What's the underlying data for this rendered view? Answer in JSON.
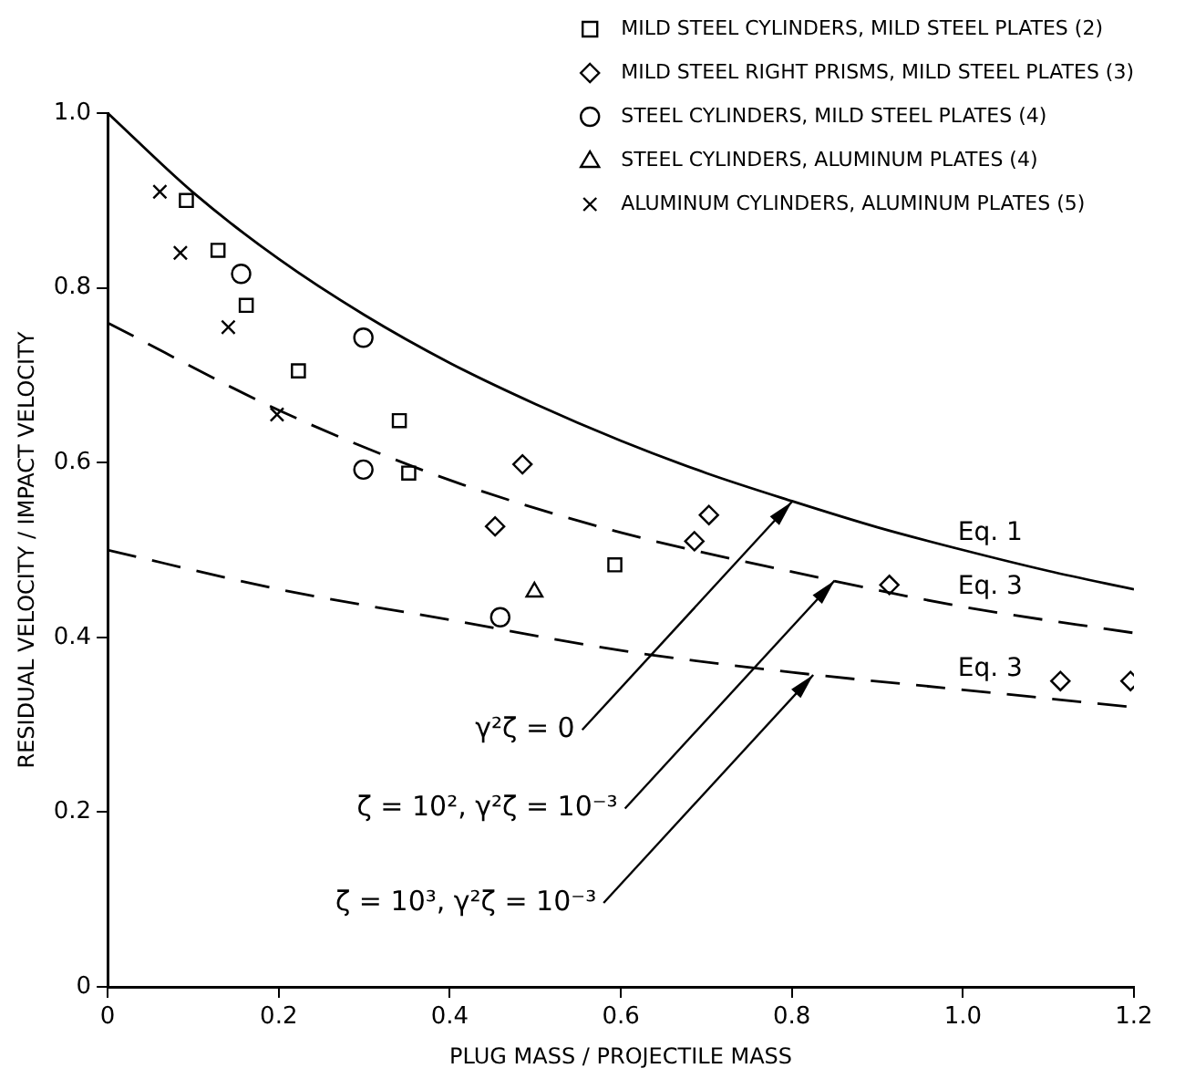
{
  "chart_data": {
    "type": "scatter",
    "xlabel": "PLUG MASS / PROJECTILE MASS",
    "ylabel": "RESIDUAL VELOCITY / IMPACT VELOCITY",
    "xlim": [
      0,
      1.2
    ],
    "xticks": [
      0,
      0.2,
      0.4,
      0.6,
      0.8,
      {
        "value": 1,
        "label": "1.0"
      },
      1.2
    ],
    "ylim": [
      0,
      1
    ],
    "yticks": [
      0,
      0.2,
      0.4,
      0.6,
      0.8,
      {
        "value": 1,
        "label": "1.0"
      }
    ],
    "grid": false,
    "legend": "top right",
    "series": [
      {
        "name": "MILD STEEL CYLINDERS, MILD STEEL PLATES (2)",
        "type": "scatter",
        "marker": "square",
        "color": "#000000",
        "x": [
          0.092,
          0.129,
          0.162,
          0.223,
          0.341,
          0.352,
          0.593
        ],
        "values": [
          0.9,
          0.843,
          0.78,
          0.705,
          0.648,
          0.588,
          0.483
        ]
      },
      {
        "name": "MILD STEEL RIGHT PRISMS, MILD STEEL PLATES (3)",
        "type": "scatter",
        "marker": "diamond",
        "color": "#000000",
        "x": [
          0.453,
          0.485,
          0.686,
          0.703,
          0.914,
          1.114,
          1.196
        ],
        "values": [
          0.527,
          0.598,
          0.51,
          0.54,
          0.46,
          0.35,
          0.35
        ]
      },
      {
        "name": "STEEL CYLINDERS, MILD STEEL PLATES (4)",
        "type": "scatter",
        "marker": "circle",
        "color": "#000000",
        "x": [
          0.156,
          0.299,
          0.299,
          0.459
        ],
        "values": [
          0.816,
          0.743,
          0.592,
          0.423
        ]
      },
      {
        "name": "STEEL CYLINDERS, ALUMINUM PLATES (4)",
        "type": "scatter",
        "marker": "triangle",
        "color": "#000000",
        "x": [
          0.499
        ],
        "values": [
          0.452
        ]
      },
      {
        "name": "ALUMINUM CYLINDERS, ALUMINUM PLATES (5)",
        "type": "scatter",
        "marker": "cross",
        "color": "#000000",
        "x": [
          0.061,
          0.085,
          0.141,
          0.198
        ],
        "values": [
          0.91,
          0.84,
          0.755,
          0.655
        ]
      },
      {
        "name": "Eq. 1",
        "type": "line",
        "line_style": "solid",
        "marker": "none",
        "color": "#000000",
        "x": [
          0,
          0.1,
          0.2,
          0.3,
          0.4,
          0.5,
          0.6,
          0.7,
          0.8,
          0.9,
          1,
          1.1,
          1.2
        ],
        "values": [
          1,
          0.909,
          0.833,
          0.769,
          0.714,
          0.667,
          0.625,
          0.588,
          0.556,
          0.526,
          0.5,
          0.476,
          0.455
        ]
      },
      {
        "name": "Eq. 3",
        "type": "line",
        "line_style": "dashed",
        "marker": "none",
        "color": "#000000",
        "x": [
          0,
          0.2,
          0.4,
          0.6,
          0.8,
          1,
          1.2
        ],
        "values": [
          0.76,
          0.66,
          0.58,
          0.52,
          0.475,
          0.435,
          0.405
        ]
      },
      {
        "name": "Eq. 3",
        "type": "line",
        "line_style": "dashed",
        "marker": "none",
        "color": "#000000",
        "x": [
          0,
          0.2,
          0.4,
          0.6,
          0.8,
          1,
          1.2
        ],
        "values": [
          0.5,
          0.455,
          0.42,
          0.385,
          0.36,
          0.34,
          0.32
        ]
      }
    ],
    "annotations": [
      {
        "text": "γ²ζ = 0",
        "x": 0.8,
        "y": 0.555
      },
      {
        "text": "ζ = 10², γ²ζ = 10⁻³",
        "x": 0.85,
        "y": 0.465
      },
      {
        "text": "ζ = 10³, γ²ζ = 10⁻³",
        "x": 0.825,
        "y": 0.357
      }
    ]
  }
}
